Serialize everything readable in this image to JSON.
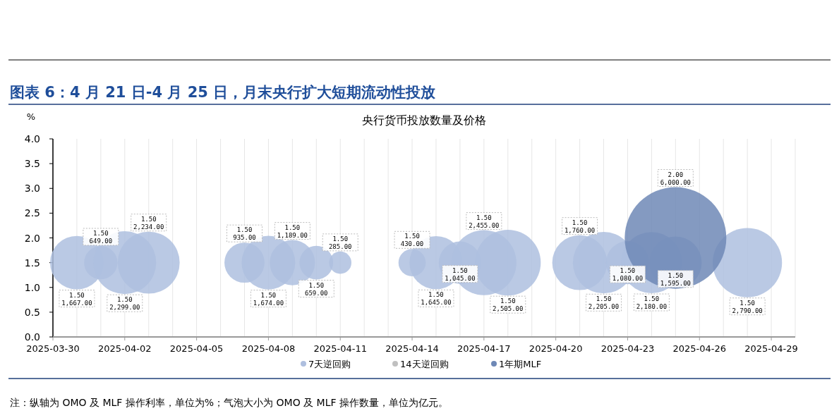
{
  "chart_data": {
    "type": "bubble",
    "title": "图表 6：4 月 21 日-4 月 25 日，月末央行扩大短期流动性投放",
    "subtitle": "央行货币投放数量及价格",
    "ylabel": "%",
    "annotations": [
      "注：纵轴为 OMO 及 MLF 操作利率，单位为%；气泡大小为 OMO 及 MLF 操作数量，单位为亿元。"
    ],
    "xlim": [
      "2025-03-30",
      "2025-04-30"
    ],
    "xticks": [
      {
        "value": "2025-03-30",
        "label": "2025-03-30"
      },
      {
        "value": "2025-03-31",
        "label": null
      },
      {
        "value": "2025-04-01",
        "label": null
      },
      {
        "value": "2025-04-02",
        "label": "2025-04-02"
      },
      {
        "value": "2025-04-03",
        "label": null
      },
      {
        "value": "2025-04-04",
        "label": null
      },
      {
        "value": "2025-04-05",
        "label": "2025-04-05"
      },
      {
        "value": "2025-04-06",
        "label": null
      },
      {
        "value": "2025-04-07",
        "label": null
      },
      {
        "value": "2025-04-08",
        "label": "2025-04-08"
      },
      {
        "value": "2025-04-09",
        "label": null
      },
      {
        "value": "2025-04-10",
        "label": null
      },
      {
        "value": "2025-04-11",
        "label": "2025-04-11"
      },
      {
        "value": "2025-04-12",
        "label": null
      },
      {
        "value": "2025-04-13",
        "label": null
      },
      {
        "value": "2025-04-14",
        "label": "2025-04-14"
      },
      {
        "value": "2025-04-15",
        "label": null
      },
      {
        "value": "2025-04-16",
        "label": null
      },
      {
        "value": "2025-04-17",
        "label": "2025-04-17"
      },
      {
        "value": "2025-04-18",
        "label": null
      },
      {
        "value": "2025-04-19",
        "label": null
      },
      {
        "value": "2025-04-20",
        "label": "2025-04-20"
      },
      {
        "value": "2025-04-21",
        "label": null
      },
      {
        "value": "2025-04-22",
        "label": null
      },
      {
        "value": "2025-04-23",
        "label": "2025-04-23"
      },
      {
        "value": "2025-04-24",
        "label": null
      },
      {
        "value": "2025-04-25",
        "label": null
      },
      {
        "value": "2025-04-26",
        "label": "2025-04-26"
      },
      {
        "value": "2025-04-27",
        "label": null
      },
      {
        "value": "2025-04-28",
        "label": null
      },
      {
        "value": "2025-04-29",
        "label": "2025-04-29"
      },
      {
        "value": "2025-04-30",
        "label": null
      }
    ],
    "ylim": [
      0,
      4
    ],
    "yticks": [
      {
        "value": 0,
        "label": "0.0"
      },
      {
        "value": 0.5,
        "label": "0.5"
      },
      {
        "value": 1,
        "label": "1.0"
      },
      {
        "value": 1.5,
        "label": "1.5"
      },
      {
        "value": 2,
        "label": "2.0"
      },
      {
        "value": 2.5,
        "label": "2.5"
      },
      {
        "value": 3,
        "label": "3.0"
      },
      {
        "value": 3.5,
        "label": "3.5"
      },
      {
        "value": 4,
        "label": "4.0"
      }
    ],
    "grid": "x",
    "legend": "bottom",
    "marker": "circle",
    "series": [
      {
        "name": "7天逆回购",
        "color": "#aebfdf",
        "x": [
          "2025-03-31",
          "2025-04-01",
          "2025-04-02",
          "2025-04-03",
          "2025-04-07",
          "2025-04-08",
          "2025-04-09",
          "2025-04-10",
          "2025-04-11",
          "2025-04-14",
          "2025-04-15",
          "2025-04-16",
          "2025-04-17",
          "2025-04-18",
          "2025-04-21",
          "2025-04-22",
          "2025-04-23",
          "2025-04-24",
          "2025-04-25",
          "2025-04-28"
        ],
        "values": [
          1.5,
          1.5,
          1.5,
          1.5,
          1.5,
          1.5,
          1.5,
          1.5,
          1.5,
          1.5,
          1.5,
          1.5,
          1.5,
          1.5,
          1.5,
          1.5,
          1.5,
          1.5,
          1.5,
          1.5
        ],
        "sizes": [
          0.278,
          0.108,
          0.383,
          0.372,
          0.156,
          0.279,
          0.198,
          0.11,
          0.048,
          0.072,
          0.274,
          0.174,
          0.409,
          0.418,
          0.293,
          0.368,
          0.18,
          0.363,
          0.266,
          0.465
        ],
        "value_labels": [
          "1.50\n1,667.00",
          "1.50\n649.00",
          "1.50\n2,299.00",
          "1.50\n2,234.00",
          "1.50\n935.00",
          "1.50\n1,674.00",
          "1.50\n1,189.00",
          "1.50\n659.00",
          "1.50\n285.00",
          "1.50\n430.00",
          "1.50\n1,645.00",
          "1.50\n1,045.00",
          "1.50\n2,455.00",
          "1.50\n2,505.00",
          "1.50\n1,760.00",
          "1.50\n2,205.00",
          "1.50\n1,080.00",
          "1.50\n2,180.00",
          "1.50\n1,595.00",
          "1.50\n2,790.00"
        ]
      },
      {
        "name": "14天逆回购",
        "color": "#c0c0c0"
      },
      {
        "name": "1年期MLF",
        "color": "#6e88b6",
        "x": [
          "2025-04-25"
        ],
        "values": [
          2
        ],
        "sizes": [
          1
        ],
        "value_labels": [
          "2.00\n6,000.00"
        ]
      }
    ]
  }
}
